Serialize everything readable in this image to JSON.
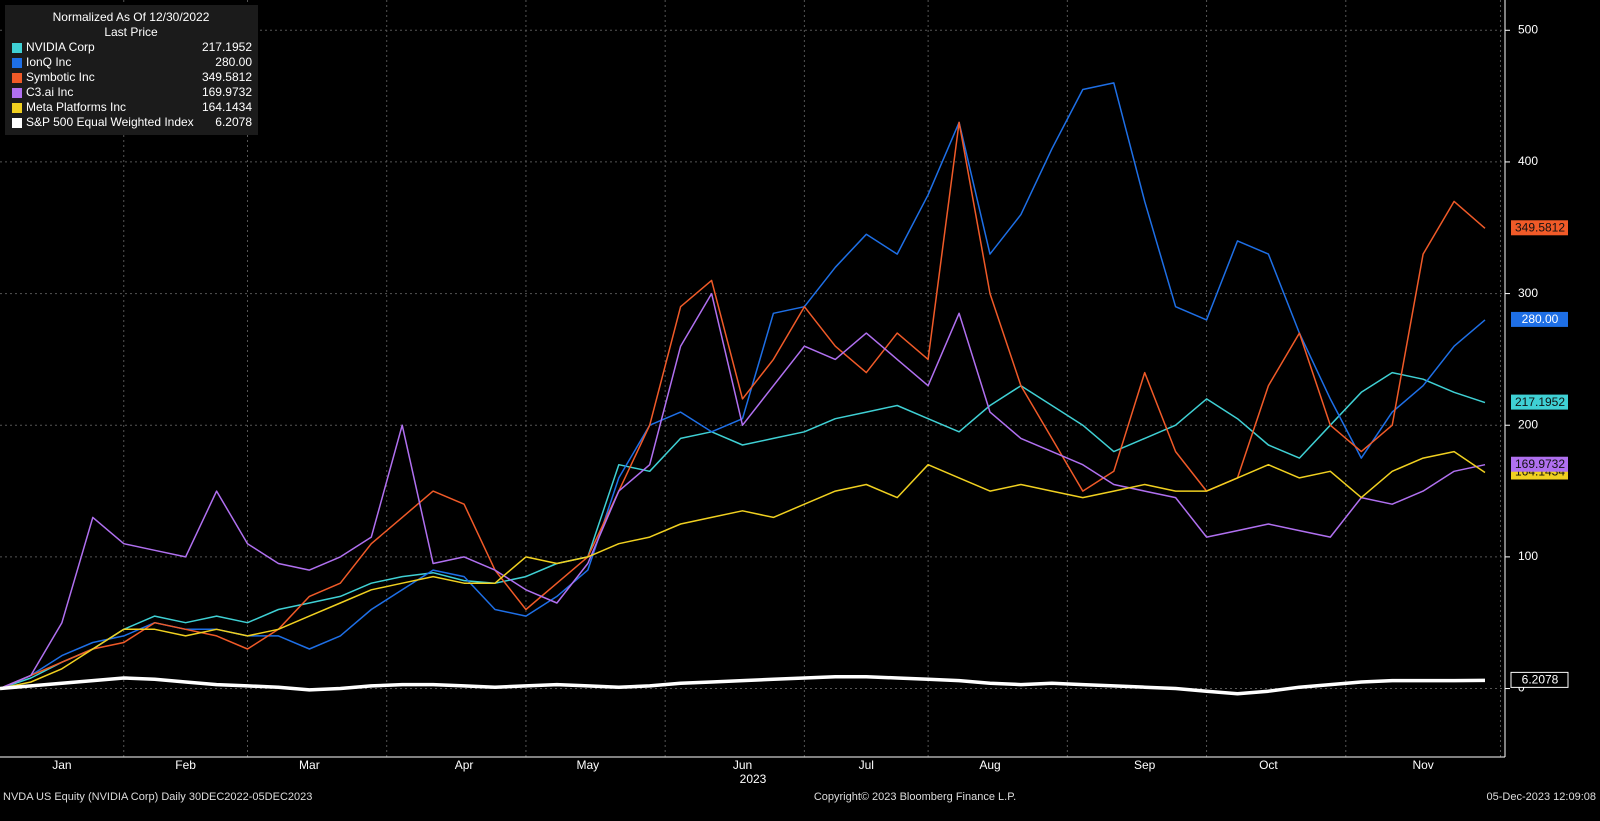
{
  "chart_data": {
    "type": "line",
    "legend_title": "Normalized As Of 12/30/2022",
    "legend_header": "Last Price",
    "x_year_label": "2023",
    "footer_left": "NVDA US Equity (NVIDIA Corp)  Daily 30DEC2022-05DEC2023",
    "footer_center": "Copyright© 2023 Bloomberg Finance L.P.",
    "footer_right": "05-Dec-2023 12:09:08",
    "grid": true,
    "legend_position": "top-left",
    "ylim": [
      -52,
      523
    ],
    "yticks": [
      {
        "value": 0,
        "label": "0"
      },
      100,
      200,
      300,
      400,
      500
    ],
    "categories": [
      null,
      null,
      "Jan",
      null,
      null,
      null,
      "Feb",
      null,
      null,
      null,
      "Mar",
      null,
      null,
      null,
      null,
      "Apr",
      null,
      null,
      null,
      "May",
      null,
      null,
      null,
      null,
      "Jun",
      null,
      null,
      null,
      "Jul",
      null,
      null,
      null,
      "Aug",
      null,
      null,
      null,
      null,
      "Sep",
      null,
      null,
      null,
      "Oct",
      null,
      null,
      null,
      null,
      "Nov",
      null,
      null
    ],
    "series": [
      {
        "name": "NVIDIA Corp",
        "color": "#3fd0d4",
        "last_price": "217.1952",
        "values": [
          0,
          8,
          20,
          30,
          45,
          55,
          50,
          55,
          50,
          60,
          65,
          70,
          80,
          85,
          88,
          82,
          80,
          85,
          95,
          100,
          170,
          165,
          190,
          195,
          185,
          190,
          195,
          205,
          210,
          215,
          205,
          195,
          215,
          230,
          215,
          200,
          180,
          190,
          200,
          220,
          205,
          185,
          175,
          200,
          225,
          240,
          235,
          225,
          217.2
        ]
      },
      {
        "name": "IonQ Inc",
        "color": "#1e6fe6",
        "last_price": "280.00",
        "values": [
          0,
          10,
          25,
          35,
          40,
          50,
          45,
          45,
          40,
          40,
          30,
          40,
          60,
          75,
          90,
          85,
          60,
          55,
          70,
          90,
          160,
          200,
          210,
          195,
          205,
          285,
          290,
          320,
          345,
          330,
          375,
          430,
          330,
          360,
          410,
          455,
          460,
          370,
          290,
          280,
          340,
          330,
          270,
          220,
          175,
          210,
          230,
          260,
          280
        ]
      },
      {
        "name": "Symbotic Inc",
        "color": "#f05a28",
        "last_price": "349.5812",
        "values": [
          0,
          10,
          20,
          30,
          35,
          50,
          45,
          40,
          30,
          45,
          70,
          80,
          110,
          130,
          150,
          140,
          90,
          60,
          80,
          100,
          150,
          200,
          290,
          310,
          220,
          250,
          290,
          260,
          240,
          270,
          250,
          430,
          300,
          230,
          190,
          150,
          165,
          240,
          180,
          150,
          160,
          230,
          270,
          200,
          180,
          200,
          330,
          370,
          349.6
        ]
      },
      {
        "name": "C3.ai Inc",
        "color": "#b070f0",
        "last_price": "169.9732",
        "values": [
          0,
          10,
          50,
          130,
          110,
          105,
          100,
          150,
          110,
          95,
          90,
          100,
          115,
          200,
          95,
          100,
          90,
          75,
          65,
          95,
          150,
          170,
          260,
          300,
          200,
          230,
          260,
          250,
          270,
          250,
          230,
          285,
          210,
          190,
          180,
          170,
          155,
          150,
          145,
          115,
          120,
          125,
          120,
          115,
          145,
          140,
          150,
          165,
          170
        ]
      },
      {
        "name": "Meta Platforms Inc",
        "color": "#f0d020",
        "last_price": "164.1434",
        "values": [
          0,
          5,
          15,
          30,
          45,
          45,
          40,
          45,
          40,
          45,
          55,
          65,
          75,
          80,
          85,
          80,
          80,
          100,
          95,
          100,
          110,
          115,
          125,
          130,
          135,
          130,
          140,
          150,
          155,
          145,
          170,
          160,
          150,
          155,
          150,
          145,
          150,
          155,
          150,
          150,
          160,
          170,
          160,
          165,
          145,
          165,
          175,
          180,
          164.1
        ]
      },
      {
        "name": "S&P 500 Equal Weighted Index",
        "color": "#ffffff",
        "last_price": "6.2078",
        "values": [
          0,
          2,
          4,
          6,
          8,
          7,
          5,
          3,
          2,
          1,
          -1,
          0,
          2,
          3,
          3,
          2,
          1,
          2,
          3,
          2,
          1,
          2,
          4,
          5,
          6,
          7,
          8,
          9,
          9,
          8,
          7,
          6,
          4,
          3,
          4,
          3,
          2,
          1,
          0,
          -2,
          -4,
          -2,
          1,
          3,
          5,
          6,
          6,
          6,
          6.2
        ]
      }
    ]
  }
}
